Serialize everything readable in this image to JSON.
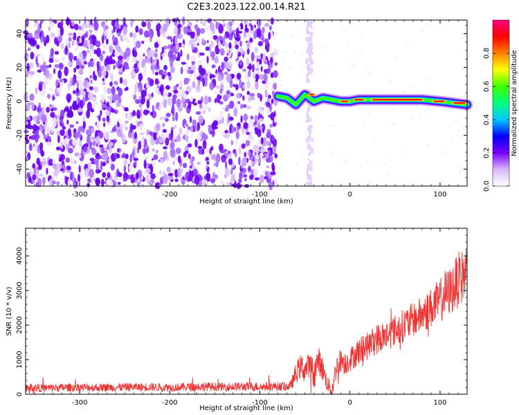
{
  "figure": {
    "title": "C2E3.2023.122.00.14.R21"
  },
  "chart_data": [
    {
      "type": "heatmap",
      "title": "C2E3.2023.122.00.14.R21",
      "xlabel": "Height of straight line (km)",
      "ylabel": "Frequency (Hz)",
      "xlim": [
        -360,
        130
      ],
      "ylim": [
        -50,
        48
      ],
      "x_ticks": [
        -300,
        -200,
        -100,
        0,
        100
      ],
      "y_ticks": [
        -40,
        -20,
        0,
        20,
        40
      ],
      "grid": false,
      "colorbar": {
        "label": "Normalized spectral amplitude",
        "range": [
          0.0,
          1.0
        ],
        "ticks": [
          0.0,
          0.2,
          0.4,
          0.6,
          0.8
        ],
        "colormap": [
          "#ffffff",
          "#d8b8ff",
          "#7a00ff",
          "#0000ff",
          "#00c8ff",
          "#00ff80",
          "#40ff00",
          "#ffff00",
          "#ff8000",
          "#ff0000",
          "#ff0080"
        ]
      },
      "regions": [
        {
          "x_range": [
            -360,
            -82
          ],
          "y_range": [
            -50,
            48
          ],
          "amplitude": "0.1-0.3",
          "description_color": "#7a00ff"
        },
        {
          "x_range": [
            -48,
            -42
          ],
          "y_range": [
            -50,
            48
          ],
          "amplitude": "0.05",
          "description_color": "#d8b8ff"
        },
        {
          "x_range": [
            -82,
            130
          ],
          "y_center": [
            2,
            0,
            -2
          ],
          "amplitude": "0.4-0.9",
          "description_color": "#ff0000"
        }
      ],
      "ridge": [
        {
          "x": -80,
          "y": 3
        },
        {
          "x": -70,
          "y": 2
        },
        {
          "x": -60,
          "y": -2
        },
        {
          "x": -55,
          "y": 1
        },
        {
          "x": -50,
          "y": 4
        },
        {
          "x": -40,
          "y": 0
        },
        {
          "x": -30,
          "y": 2
        },
        {
          "x": -20,
          "y": 1
        },
        {
          "x": -10,
          "y": 0
        },
        {
          "x": 0,
          "y": 0
        },
        {
          "x": 10,
          "y": 1
        },
        {
          "x": 20,
          "y": 1
        },
        {
          "x": 40,
          "y": 1
        },
        {
          "x": 60,
          "y": 1
        },
        {
          "x": 80,
          "y": 1
        },
        {
          "x": 100,
          "y": 0
        },
        {
          "x": 115,
          "y": -1
        },
        {
          "x": 130,
          "y": -2
        }
      ]
    },
    {
      "type": "line",
      "xlabel": "Height of straight line (km)",
      "ylabel": "SNR (10 * v/v)",
      "xlim": [
        -360,
        130
      ],
      "ylim": [
        0,
        4800
      ],
      "x_ticks": [
        -300,
        -200,
        -100,
        0,
        100
      ],
      "y_ticks": [
        0,
        1000,
        2000,
        3000,
        4000
      ],
      "grid": false,
      "series": [
        {
          "color": "#f03030",
          "x": [
            -360,
            -340,
            -320,
            -300,
            -280,
            -260,
            -240,
            -220,
            -200,
            -180,
            -160,
            -140,
            -120,
            -100,
            -80,
            -66,
            -60,
            -55,
            -50,
            -45,
            -40,
            -35,
            -30,
            -25,
            -20,
            -18,
            -15,
            -10,
            -5,
            0,
            10,
            20,
            30,
            40,
            50,
            60,
            70,
            80,
            90,
            100,
            105,
            110,
            115,
            120,
            125,
            130
          ],
          "y": [
            200,
            180,
            190,
            200,
            195,
            200,
            205,
            210,
            200,
            210,
            220,
            210,
            220,
            220,
            230,
            230,
            600,
            800,
            700,
            850,
            600,
            1000,
            700,
            300,
            100,
            400,
            800,
            1000,
            900,
            1000,
            1250,
            1400,
            1600,
            1700,
            1850,
            2000,
            2150,
            2300,
            2500,
            2700,
            2900,
            2950,
            3100,
            3300,
            3400,
            3600
          ],
          "noise": [
            120,
            120,
            120,
            120,
            120,
            120,
            120,
            120,
            120,
            120,
            130,
            120,
            130,
            130,
            130,
            130,
            300,
            350,
            400,
            350,
            450,
            400,
            350,
            250,
            200,
            300,
            350,
            350,
            350,
            350,
            400,
            400,
            450,
            450,
            450,
            500,
            500,
            550,
            600,
            650,
            700,
            700,
            750,
            800,
            800,
            850
          ]
        }
      ]
    }
  ]
}
